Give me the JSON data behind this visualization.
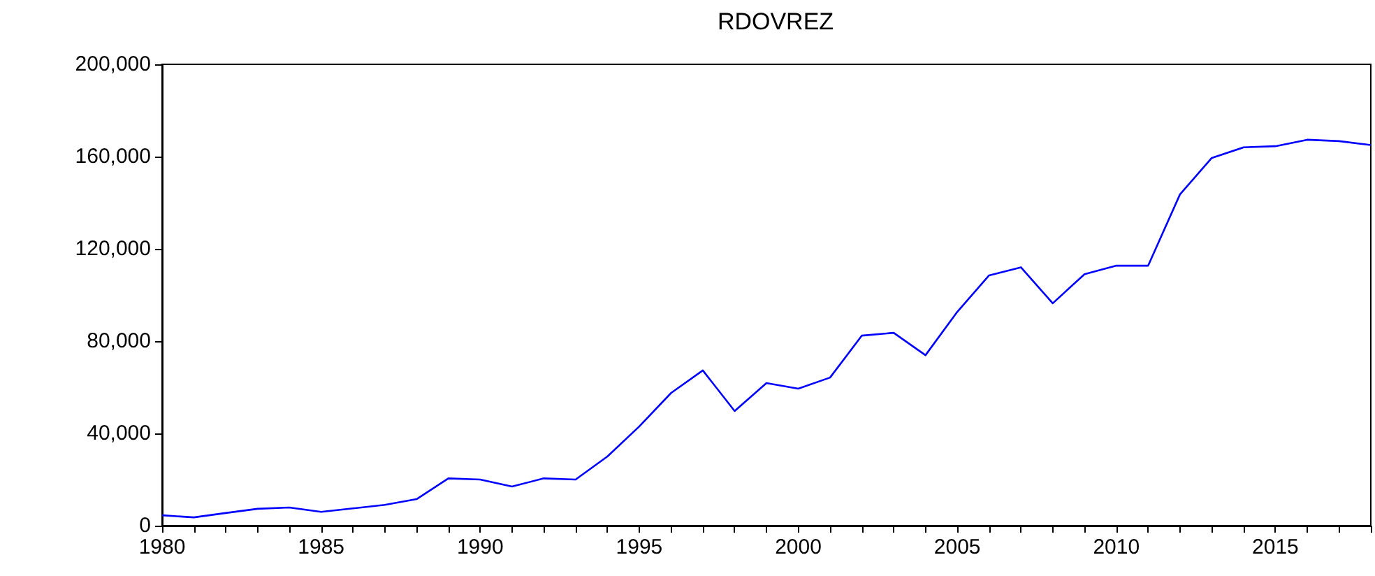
{
  "chart_data": {
    "type": "line",
    "title": "RDOVREZ",
    "x": [
      1980,
      1981,
      1982,
      1983,
      1984,
      1985,
      1986,
      1987,
      1988,
      1989,
      1990,
      1991,
      1992,
      1993,
      1994,
      1995,
      1996,
      1997,
      1998,
      1999,
      2000,
      2001,
      2002,
      2003,
      2004,
      2005,
      2006,
      2007,
      2008,
      2009,
      2010,
      2011,
      2012,
      2013,
      2014,
      2015,
      2016,
      2017,
      2018
    ],
    "series": [
      {
        "color": "#0000ff",
        "values": [
          4500,
          3600,
          5500,
          7300,
          7900,
          6000,
          7500,
          9000,
          11500,
          20500,
          20000,
          17000,
          20500,
          20000,
          30000,
          43000,
          57500,
          67300,
          49700,
          61800,
          59400,
          64200,
          82400,
          83600,
          73900,
          92700,
          108500,
          112000,
          96400,
          109000,
          112700,
          112700,
          143600,
          159400,
          164000,
          164500,
          167300,
          166700,
          165000
        ]
      }
    ],
    "xlim": [
      1980,
      2018
    ],
    "xticks": [
      1980,
      {
        "value": 1981,
        "label": null
      },
      {
        "value": 1982,
        "label": null
      },
      {
        "value": 1983,
        "label": null
      },
      {
        "value": 1984,
        "label": null
      },
      1985,
      {
        "value": 1986,
        "label": null
      },
      {
        "value": 1987,
        "label": null
      },
      {
        "value": 1988,
        "label": null
      },
      {
        "value": 1989,
        "label": null
      },
      1990,
      {
        "value": 1991,
        "label": null
      },
      {
        "value": 1992,
        "label": null
      },
      {
        "value": 1993,
        "label": null
      },
      {
        "value": 1994,
        "label": null
      },
      1995,
      {
        "value": 1996,
        "label": null
      },
      {
        "value": 1997,
        "label": null
      },
      {
        "value": 1998,
        "label": null
      },
      {
        "value": 1999,
        "label": null
      },
      2000,
      {
        "value": 2001,
        "label": null
      },
      {
        "value": 2002,
        "label": null
      },
      {
        "value": 2003,
        "label": null
      },
      {
        "value": 2004,
        "label": null
      },
      2005,
      {
        "value": 2006,
        "label": null
      },
      {
        "value": 2007,
        "label": null
      },
      {
        "value": 2008,
        "label": null
      },
      {
        "value": 2009,
        "label": null
      },
      2010,
      {
        "value": 2011,
        "label": null
      },
      {
        "value": 2012,
        "label": null
      },
      {
        "value": 2013,
        "label": null
      },
      {
        "value": 2014,
        "label": null
      },
      2015,
      {
        "value": 2016,
        "label": null
      },
      {
        "value": 2017,
        "label": null
      },
      {
        "value": 2018,
        "label": null
      }
    ],
    "ylim": [
      0,
      200000
    ],
    "yticks": [
      0,
      {
        "value": 40000,
        "label": "40,000"
      },
      {
        "value": 80000,
        "label": "80,000"
      },
      {
        "value": 120000,
        "label": "120,000"
      },
      {
        "value": 160000,
        "label": "160,000"
      },
      {
        "value": 200000,
        "label": "200,000"
      }
    ],
    "grid": false,
    "marker": "none",
    "line_style": "solid"
  }
}
